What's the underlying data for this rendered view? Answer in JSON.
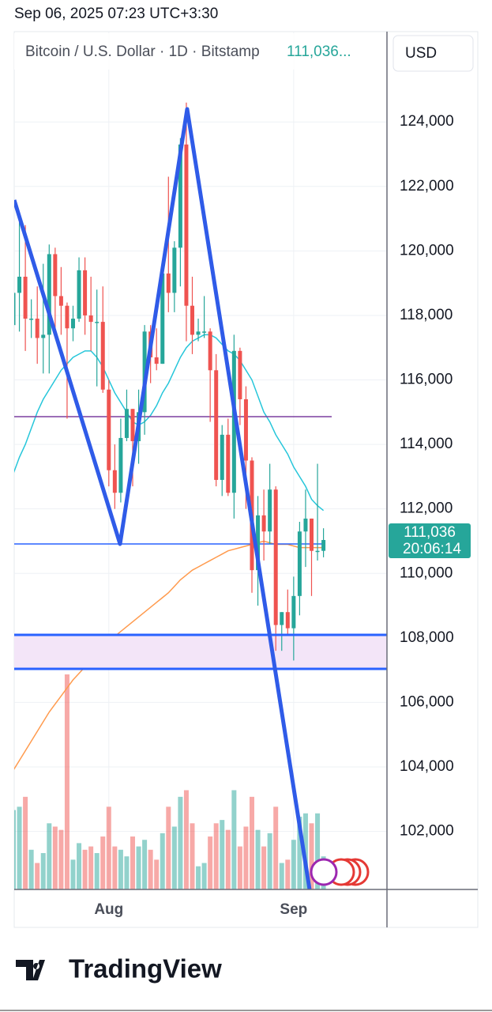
{
  "header": {
    "timestamp": "Sep 06, 2025 07:23 UTC+3:30"
  },
  "chart_data": {
    "type": "candlestick",
    "title": "Bitcoin / U.S. Dollar · 1D · Bitstamp",
    "legend_price": "111,036...",
    "currency": "USD",
    "last_price": {
      "value": 111036,
      "label": "111,036"
    },
    "countdown": "20:06:14",
    "categories": [
      null,
      null,
      null,
      null,
      null,
      null,
      null,
      null,
      null,
      null,
      null,
      null,
      null,
      null,
      null,
      null,
      "Aug",
      null,
      null,
      null,
      null,
      null,
      null,
      null,
      null,
      null,
      null,
      null,
      null,
      null,
      null,
      null,
      null,
      null,
      null,
      null,
      null,
      null,
      null,
      null,
      null,
      null,
      null,
      null,
      null,
      null,
      null,
      "Sep",
      null,
      null,
      null,
      null,
      null
    ],
    "open": [
      117700,
      118700,
      119200,
      117900,
      117900,
      117300,
      117400,
      119900,
      118600,
      118300,
      117600,
      117900,
      119400,
      118000,
      117800,
      117800,
      115700,
      113200,
      112500,
      114200,
      115100,
      114100,
      115000,
      117500,
      116700,
      116500,
      119300,
      118700,
      120100,
      123300,
      118300,
      117400,
      117500,
      117500,
      116300,
      112900,
      114300,
      112500,
      116900,
      115400,
      113500,
      110100,
      111800,
      111300,
      112600,
      108400,
      108800,
      108300,
      109300,
      111300,
      111700,
      110700,
      110700
    ],
    "high": [
      119200,
      120900,
      120800,
      118500,
      118900,
      119600,
      120200,
      120100,
      119500,
      118400,
      118300,
      119800,
      119800,
      119200,
      118800,
      118900,
      116000,
      114000,
      114800,
      115700,
      115100,
      115700,
      117700,
      117700,
      117600,
      119300,
      122300,
      120300,
      123500,
      124600,
      119200,
      117900,
      118600,
      117600,
      116800,
      114600,
      114800,
      117400,
      117000,
      115800,
      113600,
      112400,
      112600,
      113400,
      112700,
      108800,
      109500,
      109900,
      111600,
      112600,
      111700,
      113400,
      111400
    ],
    "low": [
      115900,
      117500,
      116900,
      117300,
      116500,
      116200,
      116200,
      117400,
      117400,
      114800,
      117200,
      117800,
      117400,
      116900,
      115800,
      115600,
      112700,
      112000,
      112200,
      114100,
      112700,
      113400,
      114300,
      115900,
      116300,
      116500,
      118100,
      118100,
      118900,
      117200,
      116800,
      117200,
      117300,
      114700,
      112700,
      112400,
      112400,
      111700,
      114600,
      112000,
      109400,
      109000,
      110400,
      110900,
      107600,
      107600,
      108100,
      107300,
      108700,
      110200,
      109300,
      110400,
      110500
    ],
    "close": [
      118700,
      119200,
      117900,
      117900,
      117300,
      117400,
      119900,
      118600,
      118300,
      117600,
      117900,
      119400,
      118000,
      117800,
      117800,
      115700,
      113200,
      112500,
      114200,
      115100,
      114100,
      115000,
      117500,
      116700,
      116500,
      119300,
      118700,
      120100,
      123300,
      118300,
      117400,
      117500,
      117500,
      116300,
      112900,
      114300,
      112500,
      116900,
      115400,
      113500,
      110100,
      111800,
      111300,
      112600,
      108400,
      108800,
      108300,
      109300,
      111300,
      111700,
      110700,
      110700,
      111036
    ],
    "volume": [
      2400,
      2500,
      2800,
      1200,
      800,
      1100,
      2000,
      1900,
      1800,
      6500,
      900,
      1400,
      1200,
      1300,
      1100,
      1600,
      2500,
      1300,
      1200,
      1000,
      1600,
      1300,
      1500,
      1200,
      900,
      1700,
      2500,
      1900,
      2800,
      3000,
      2000,
      700,
      800,
      1600,
      2000,
      2100,
      1800,
      3000,
      1300,
      1900,
      2800,
      1800,
      1300,
      1700,
      2500,
      800,
      900,
      1500,
      2200,
      2300,
      2000,
      2300,
      1000
    ],
    "moving_averages": [
      {
        "color": "#26c6da",
        "values": [
          113100,
          113600,
          114000,
          114500,
          115000,
          115400,
          115700,
          116000,
          116300,
          116500,
          116700,
          116800,
          116900,
          116900,
          116700,
          116400,
          116000,
          115600,
          115300,
          115000,
          114700,
          114600,
          114700,
          114900,
          115200,
          115600,
          115900,
          116300,
          116700,
          117000,
          117200,
          117300,
          117400,
          117400,
          117300,
          117100,
          116900,
          116800,
          116600,
          116300,
          116000,
          115500,
          115000,
          114700,
          114300,
          114000,
          113700,
          113300,
          113000,
          112700,
          112300,
          112100,
          111950
        ]
      },
      {
        "color": "#ff9a4d",
        "values": [
          103900,
          104200,
          104500,
          104800,
          105100,
          105400,
          105700,
          105950,
          106200,
          106450,
          106700,
          106900,
          107100,
          107300,
          107500,
          107700,
          107900,
          108050,
          108200,
          108350,
          108500,
          108650,
          108800,
          108950,
          109100,
          109250,
          109400,
          109600,
          109800,
          109950,
          110100,
          110200,
          110300,
          110400,
          110500,
          110600,
          110700,
          110750,
          110800,
          110850,
          110900,
          110950,
          111000,
          110950,
          110900,
          110900,
          110900,
          110850,
          110800,
          110800,
          110800,
          110800,
          110800
        ]
      }
    ],
    "up_color": "#26a69a",
    "down_color": "#ef5350",
    "ylim": [
      100200,
      126800
    ],
    "yticks": [
      {
        "value": 102000,
        "label": "102,000"
      },
      {
        "value": 104000,
        "label": "104,000"
      },
      {
        "value": 106000,
        "label": "106,000"
      },
      {
        "value": 108000,
        "label": "108,000"
      },
      {
        "value": 110000,
        "label": "110,000"
      },
      {
        "value": 112000,
        "label": "112,000"
      },
      {
        "value": 114000,
        "label": "114,000"
      },
      {
        "value": 116000,
        "label": "116,000"
      },
      {
        "value": 118000,
        "label": "118,000"
      },
      {
        "value": 120000,
        "label": "120,000"
      },
      {
        "value": 122000,
        "label": "122,000"
      },
      {
        "value": 124000,
        "label": "124,000"
      }
    ],
    "grid": true
  },
  "footer": {
    "brand": "TradingView"
  }
}
